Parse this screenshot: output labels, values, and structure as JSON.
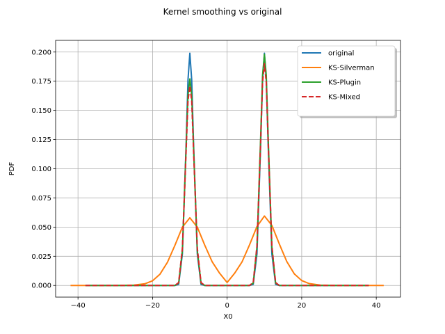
{
  "chart_data": {
    "type": "line",
    "title": "Kernel smoothing vs original",
    "xlabel": "X0",
    "ylabel": "PDF",
    "xlim": [
      -46,
      46.5
    ],
    "ylim": [
      -0.01,
      0.21
    ],
    "xticks": [
      -40,
      -20,
      0,
      20,
      40
    ],
    "xtick_labels": [
      "−40",
      "−20",
      "0",
      "20",
      "40"
    ],
    "yticks": [
      0.0,
      0.025,
      0.05,
      0.075,
      0.1,
      0.125,
      0.15,
      0.175,
      0.2
    ],
    "ytick_labels": [
      "0.000",
      "0.025",
      "0.050",
      "0.075",
      "0.100",
      "0.125",
      "0.150",
      "0.175",
      "0.200"
    ],
    "grid": true,
    "legend_position": "top-right",
    "series": [
      {
        "name": "original",
        "color": "#1f77b4",
        "dash": "solid",
        "x": [
          -38,
          -20,
          -14,
          -13,
          -12,
          -11,
          -10.5,
          -10,
          -9.5,
          -9,
          -8,
          -7,
          -6,
          0,
          6,
          7,
          8,
          9,
          9.5,
          10,
          10.5,
          11,
          12,
          13,
          14,
          20,
          38
        ],
        "y": [
          0,
          0,
          0,
          0.0009,
          0.027,
          0.121,
          0.176,
          0.199,
          0.176,
          0.121,
          0.027,
          0.0009,
          0,
          0,
          0,
          0.0009,
          0.027,
          0.121,
          0.176,
          0.199,
          0.176,
          0.121,
          0.027,
          0.0009,
          0,
          0,
          0
        ]
      },
      {
        "name": "KS-Silverman",
        "color": "#ff7f0e",
        "dash": "solid",
        "x": [
          -42,
          -35,
          -30,
          -25,
          -22,
          -20,
          -18,
          -16,
          -14,
          -12,
          -10,
          -8,
          -6,
          -4,
          -2,
          0,
          2,
          4,
          6,
          8,
          10,
          12,
          14,
          16,
          18,
          20,
          22,
          25,
          30,
          35,
          42
        ],
        "y": [
          0,
          0,
          0,
          0.0003,
          0.0015,
          0.004,
          0.0097,
          0.0199,
          0.0344,
          0.05,
          0.058,
          0.05,
          0.0345,
          0.0202,
          0.0104,
          0.0025,
          0.0104,
          0.0202,
          0.0347,
          0.0505,
          0.0595,
          0.0515,
          0.0355,
          0.0205,
          0.01,
          0.0042,
          0.0016,
          0.0003,
          0,
          0,
          0
        ]
      },
      {
        "name": "KS-Plugin",
        "color": "#2ca02c",
        "dash": "solid",
        "x": [
          -38,
          -20,
          -14,
          -13,
          -12,
          -11,
          -10.5,
          -10,
          -9.5,
          -9,
          -8,
          -7,
          -6,
          0,
          6,
          7,
          8,
          9,
          9.5,
          10,
          10.5,
          11,
          12,
          13,
          14,
          20,
          38
        ],
        "y": [
          0,
          0,
          0,
          0.002,
          0.03,
          0.118,
          0.163,
          0.177,
          0.163,
          0.118,
          0.03,
          0.002,
          0,
          0,
          0,
          0.002,
          0.033,
          0.128,
          0.18,
          0.198,
          0.18,
          0.128,
          0.033,
          0.002,
          0,
          0,
          0
        ]
      },
      {
        "name": "KS-Mixed",
        "color": "#d62728",
        "dash": "dashed",
        "x": [
          -38,
          -20,
          -14,
          -13,
          -12,
          -11,
          -10.5,
          -10,
          -9.5,
          -9,
          -8,
          -7,
          -6,
          0,
          6,
          7,
          8,
          9,
          9.5,
          10,
          10.5,
          11,
          12,
          13,
          14,
          20,
          38
        ],
        "y": [
          0,
          0,
          0,
          0.0025,
          0.032,
          0.115,
          0.158,
          0.171,
          0.158,
          0.115,
          0.032,
          0.0025,
          0,
          0,
          0,
          0.0025,
          0.034,
          0.124,
          0.174,
          0.19,
          0.174,
          0.124,
          0.034,
          0.0025,
          0,
          0,
          0
        ]
      }
    ]
  }
}
